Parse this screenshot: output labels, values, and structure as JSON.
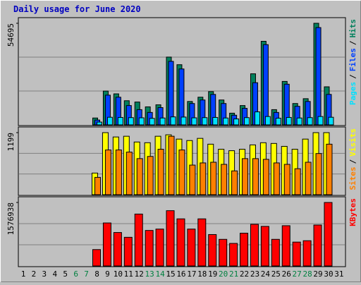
{
  "title": "Daily usage for June 2020",
  "categories": [
    "1",
    "2",
    "3",
    "4",
    "5",
    "6",
    "7",
    "8",
    "9",
    "10",
    "11",
    "12",
    "13",
    "14",
    "15",
    "16",
    "17",
    "18",
    "19",
    "20",
    "21",
    "22",
    "23",
    "24",
    "25",
    "26",
    "27",
    "28",
    "29",
    "30",
    "31"
  ],
  "highlight_categories": [
    5,
    6,
    12,
    13,
    19,
    20,
    26,
    27
  ],
  "highlight_color": "#008040",
  "legend_separator": "/",
  "chart_data": [
    {
      "type": "bar",
      "ylim": [
        0,
        54695
      ],
      "yticks": [
        54695
      ],
      "series": [
        {
          "name": "Pages",
          "color": "#00e0ff",
          "values": [
            null,
            null,
            null,
            null,
            null,
            null,
            null,
            1500,
            4100,
            4000,
            3900,
            3800,
            3500,
            3700,
            4300,
            4200,
            3800,
            3900,
            4000,
            3700,
            3200,
            3900,
            7000,
            4500,
            3600,
            4000,
            3700,
            3900,
            4500,
            4100,
            null
          ]
        },
        {
          "name": "Files",
          "color": "#0040ff",
          "values": [
            null,
            null,
            null,
            null,
            null,
            null,
            null,
            2600,
            16000,
            14900,
            10400,
            8200,
            6700,
            9300,
            34200,
            30100,
            11500,
            13400,
            16400,
            11500,
            5200,
            8900,
            22700,
            43200,
            6700,
            21900,
            10000,
            12600,
            52400,
            16400,
            null
          ]
        },
        {
          "name": "Hits",
          "color": "#00805c",
          "values": [
            null,
            null,
            null,
            null,
            null,
            null,
            null,
            3700,
            18200,
            16700,
            13000,
            12300,
            9700,
            10800,
            36500,
            32400,
            12600,
            14900,
            17900,
            13400,
            6300,
            10400,
            27500,
            45000,
            8200,
            23400,
            11500,
            14100,
            54695,
            20500,
            null
          ]
        }
      ]
    },
    {
      "type": "bar",
      "ylim": [
        0,
        1199
      ],
      "yticks": [
        1199
      ],
      "series": [
        {
          "name": "Sites",
          "color": "#ff8000",
          "values": [
            null,
            null,
            null,
            null,
            null,
            null,
            null,
            335,
            864,
            864,
            823,
            697,
            739,
            878,
            1129,
            864,
            572,
            614,
            627,
            586,
            460,
            697,
            697,
            683,
            614,
            586,
            502,
            627,
            795,
            976,
            null
          ]
        },
        {
          "name": "Visits",
          "color": "#ffff00",
          "values": [
            null,
            null,
            null,
            null,
            null,
            null,
            null,
            418,
            1199,
            1115,
            1129,
            1018,
            1004,
            1129,
            1157,
            1074,
            1046,
            1088,
            976,
            878,
            850,
            878,
            962,
            1004,
            990,
            934,
            878,
            1074,
            1199,
            1199,
            null
          ]
        }
      ]
    },
    {
      "type": "bar",
      "ylim": [
        0,
        1576938
      ],
      "yticks": [
        1576938
      ],
      "series": [
        {
          "name": "KBytes",
          "color": "#ff0000",
          "values": [
            null,
            null,
            null,
            null,
            null,
            null,
            null,
            407000,
            1068000,
            831000,
            712000,
            1289000,
            882000,
            916000,
            1373000,
            1170000,
            916000,
            1170000,
            780000,
            661000,
            560000,
            814000,
            1034000,
            983000,
            661000,
            1000000,
            593000,
            627000,
            1017000,
            1576938,
            null
          ]
        }
      ]
    }
  ]
}
